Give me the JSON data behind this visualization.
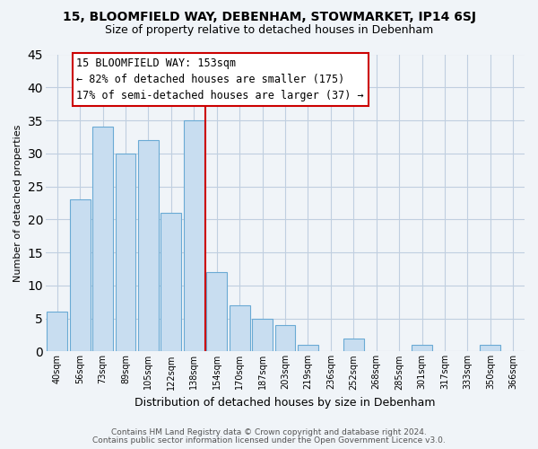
{
  "title": "15, BLOOMFIELD WAY, DEBENHAM, STOWMARKET, IP14 6SJ",
  "subtitle": "Size of property relative to detached houses in Debenham",
  "xlabel": "Distribution of detached houses by size in Debenham",
  "ylabel": "Number of detached properties",
  "bin_labels": [
    "40sqm",
    "56sqm",
    "73sqm",
    "89sqm",
    "105sqm",
    "122sqm",
    "138sqm",
    "154sqm",
    "170sqm",
    "187sqm",
    "203sqm",
    "219sqm",
    "236sqm",
    "252sqm",
    "268sqm",
    "285sqm",
    "301sqm",
    "317sqm",
    "333sqm",
    "350sqm",
    "366sqm"
  ],
  "bar_heights": [
    6,
    23,
    34,
    30,
    32,
    21,
    35,
    12,
    7,
    5,
    4,
    1,
    0,
    2,
    0,
    0,
    1,
    0,
    0,
    1,
    0
  ],
  "bar_color": "#c8ddf0",
  "bar_edge_color": "#6aaad4",
  "vline_color": "#cc0000",
  "ylim": [
    0,
    45
  ],
  "yticks": [
    0,
    5,
    10,
    15,
    20,
    25,
    30,
    35,
    40,
    45
  ],
  "annotation_title": "15 BLOOMFIELD WAY: 153sqm",
  "annotation_line1": "← 82% of detached houses are smaller (175)",
  "annotation_line2": "17% of semi-detached houses are larger (37) →",
  "footer_line1": "Contains HM Land Registry data © Crown copyright and database right 2024.",
  "footer_line2": "Contains public sector information licensed under the Open Government Licence v3.0.",
  "bg_color": "#f0f4f8",
  "plot_bg_color": "#f0f4f8",
  "grid_color": "#c0cfe0",
  "title_fontsize": 10,
  "subtitle_fontsize": 9
}
